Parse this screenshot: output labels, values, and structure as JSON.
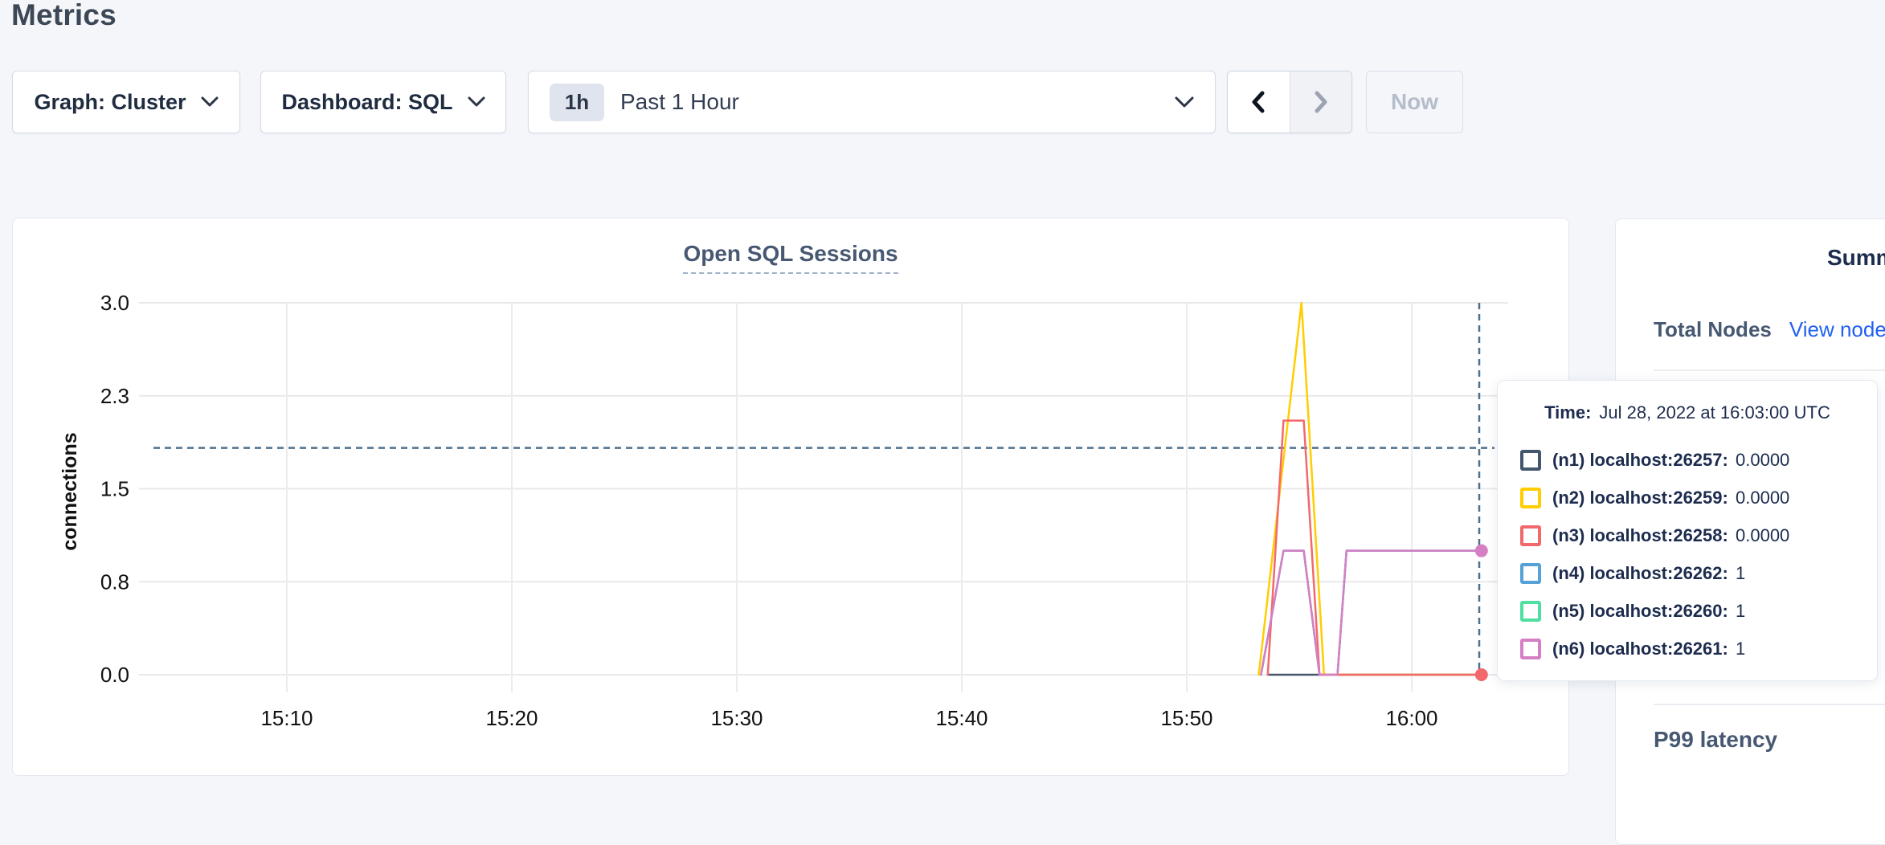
{
  "page": {
    "title": "Metrics"
  },
  "toolbar": {
    "graph_dropdown_label": "Graph: Cluster",
    "dashboard_dropdown_label": "Dashboard: SQL",
    "time_badge": "1h",
    "time_range_label": "Past 1 Hour",
    "now_button_label": "Now"
  },
  "chart_data": {
    "type": "line",
    "title": "Open SQL Sessions",
    "ylabel": "connections",
    "xlabel": "",
    "grid": true,
    "ylim": [
      0,
      3
    ],
    "y_ticks": [
      0,
      0.75,
      1.5,
      2.25,
      3
    ],
    "y_tick_labels": [
      "0.0",
      "0.8",
      "1.5",
      "2.3",
      "3.0"
    ],
    "x_tick_minutes": [
      10,
      20,
      30,
      40,
      50,
      60
    ],
    "x_tick_labels": [
      "15:10",
      "15:20",
      "15:30",
      "15:40",
      "15:50",
      "16:00"
    ],
    "series": [
      {
        "name": "(n1) localhost:26257",
        "color": "#44566e",
        "points": [
          [
            53.6,
            0
          ],
          [
            63.2,
            0
          ]
        ]
      },
      {
        "name": "(n5) localhost:26260",
        "color": "#4fdfa1",
        "points": [
          [
            53.3,
            0
          ],
          [
            54.3,
            1
          ],
          [
            55.2,
            1
          ],
          [
            55.9,
            0
          ],
          [
            56.7,
            0
          ],
          [
            57.1,
            1
          ],
          [
            63.2,
            1
          ]
        ]
      },
      {
        "name": "(n4) localhost:26262",
        "color": "#57a1d9",
        "points": [
          [
            53.3,
            0
          ],
          [
            54.3,
            1
          ],
          [
            55.2,
            1
          ],
          [
            55.9,
            0
          ],
          [
            56.7,
            0
          ],
          [
            57.1,
            1
          ],
          [
            63.2,
            1
          ]
        ]
      },
      {
        "name": "(n2) localhost:26259",
        "color": "#ffcd00",
        "points": [
          [
            53.2,
            0
          ],
          [
            55.1,
            3
          ],
          [
            56.1,
            0
          ],
          [
            63.2,
            0
          ]
        ]
      },
      {
        "name": "(n3) localhost:26258",
        "color": "#f2696c",
        "points": [
          [
            53.6,
            0
          ],
          [
            54.3,
            2.05
          ],
          [
            55.2,
            2.05
          ],
          [
            55.9,
            0
          ],
          [
            63.2,
            0
          ]
        ]
      },
      {
        "name": "(n6) localhost:26261",
        "color": "#d67fc5",
        "points": [
          [
            53.3,
            0
          ],
          [
            54.3,
            1
          ],
          [
            55.2,
            1
          ],
          [
            55.9,
            0
          ],
          [
            56.7,
            0
          ],
          [
            57.1,
            1
          ],
          [
            63.2,
            1
          ]
        ]
      }
    ],
    "crosshair": {
      "x_minute": 63,
      "y_value": 1.83,
      "color": "#4e708f",
      "time": "16:03"
    },
    "end_markers": [
      {
        "x_minute": 63.1,
        "y_value": 1,
        "color": "#d67fc5"
      },
      {
        "x_minute": 63.1,
        "y_value": 0,
        "color": "#f2696c"
      }
    ],
    "legend_position": "tooltip"
  },
  "tooltip": {
    "time_label": "Time:",
    "time_value": "Jul 28, 2022 at 16:03:00 UTC",
    "rows": [
      {
        "name": "(n1) localhost:26257:",
        "value": "0.0000",
        "color": "#44566e"
      },
      {
        "name": "(n2) localhost:26259:",
        "value": "0.0000",
        "color": "#ffcd00"
      },
      {
        "name": "(n3) localhost:26258:",
        "value": "0.0000",
        "color": "#f2696c"
      },
      {
        "name": "(n4) localhost:26262:",
        "value": "1",
        "color": "#57a1d9"
      },
      {
        "name": "(n5) localhost:26260:",
        "value": "1",
        "color": "#4fdfa1"
      },
      {
        "name": "(n6) localhost:26261:",
        "value": "1",
        "color": "#d67fc5"
      }
    ]
  },
  "sidebar": {
    "title": "Summary",
    "total_nodes_label": "Total Nodes",
    "view_nodes_link": "View nodes",
    "p99_label": "P99 latency"
  },
  "colors": {
    "page_bg": "#f4f6fa",
    "panel_border": "#e3e8ef",
    "heading": "#3d4856",
    "slate_heading": "#475872",
    "link_blue": "#2160f3",
    "grid_line": "#e9e9e9",
    "crosshair": "#4e708f",
    "disabled_text": "#b6bdca"
  }
}
